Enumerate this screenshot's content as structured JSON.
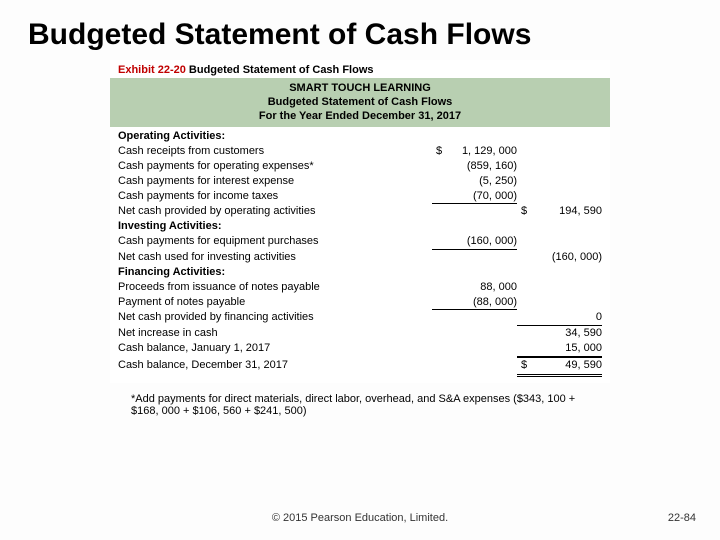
{
  "title": "Budgeted Statement of Cash Flows",
  "exhibit_prefix": "Exhibit 22-20",
  "exhibit_title": "Budgeted Statement of Cash Flows",
  "header": {
    "company": "SMART TOUCH LEARNING",
    "stmt": "Budgeted Statement of Cash Flows",
    "period": "For the Year Ended December 31, 2017"
  },
  "sections": {
    "op_title": "Operating Activities:",
    "op1_label": "Cash receipts from customers",
    "op1_val": "1, 129, 000",
    "op2_label": "Cash payments for operating expenses*",
    "op2_val": "(859, 160)",
    "op3_label": "Cash payments for interest expense",
    "op3_val": "(5, 250)",
    "op4_label": "Cash payments for income taxes",
    "op4_val": "(70, 000)",
    "op_net_label": "Net cash provided by operating activities",
    "op_net_val": "194, 590",
    "inv_title": "Investing Activities:",
    "inv1_label": "Cash payments for equipment purchases",
    "inv1_val": "(160, 000)",
    "inv_net_label": "Net cash used for investing activities",
    "inv_net_val": "(160, 000)",
    "fin_title": "Financing Activities:",
    "fin1_label": "Proceeds from issuance of notes payable",
    "fin1_val": "88, 000",
    "fin2_label": "Payment of notes payable",
    "fin2_val": "(88, 000)",
    "fin_net_label": "Net cash provided by financing activities",
    "fin_net_val": "0",
    "inc_label": "Net increase in cash",
    "inc_val": "34, 590",
    "beg_label": "Cash balance, January 1, 2017",
    "beg_val": "15, 000",
    "end_label": "Cash balance, December 31, 2017",
    "end_val": "49, 590"
  },
  "footnote": "*Add payments for direct materials, direct labor, overhead, and S&A expenses ($343, 100 + $168, 000 + $106, 560 + $241, 500)",
  "copyright": "© 2015 Pearson Education, Limited.",
  "pagenum": "22-84",
  "colors": {
    "header_band": "#b8cfb1",
    "exhibit_red": "#c00000"
  }
}
